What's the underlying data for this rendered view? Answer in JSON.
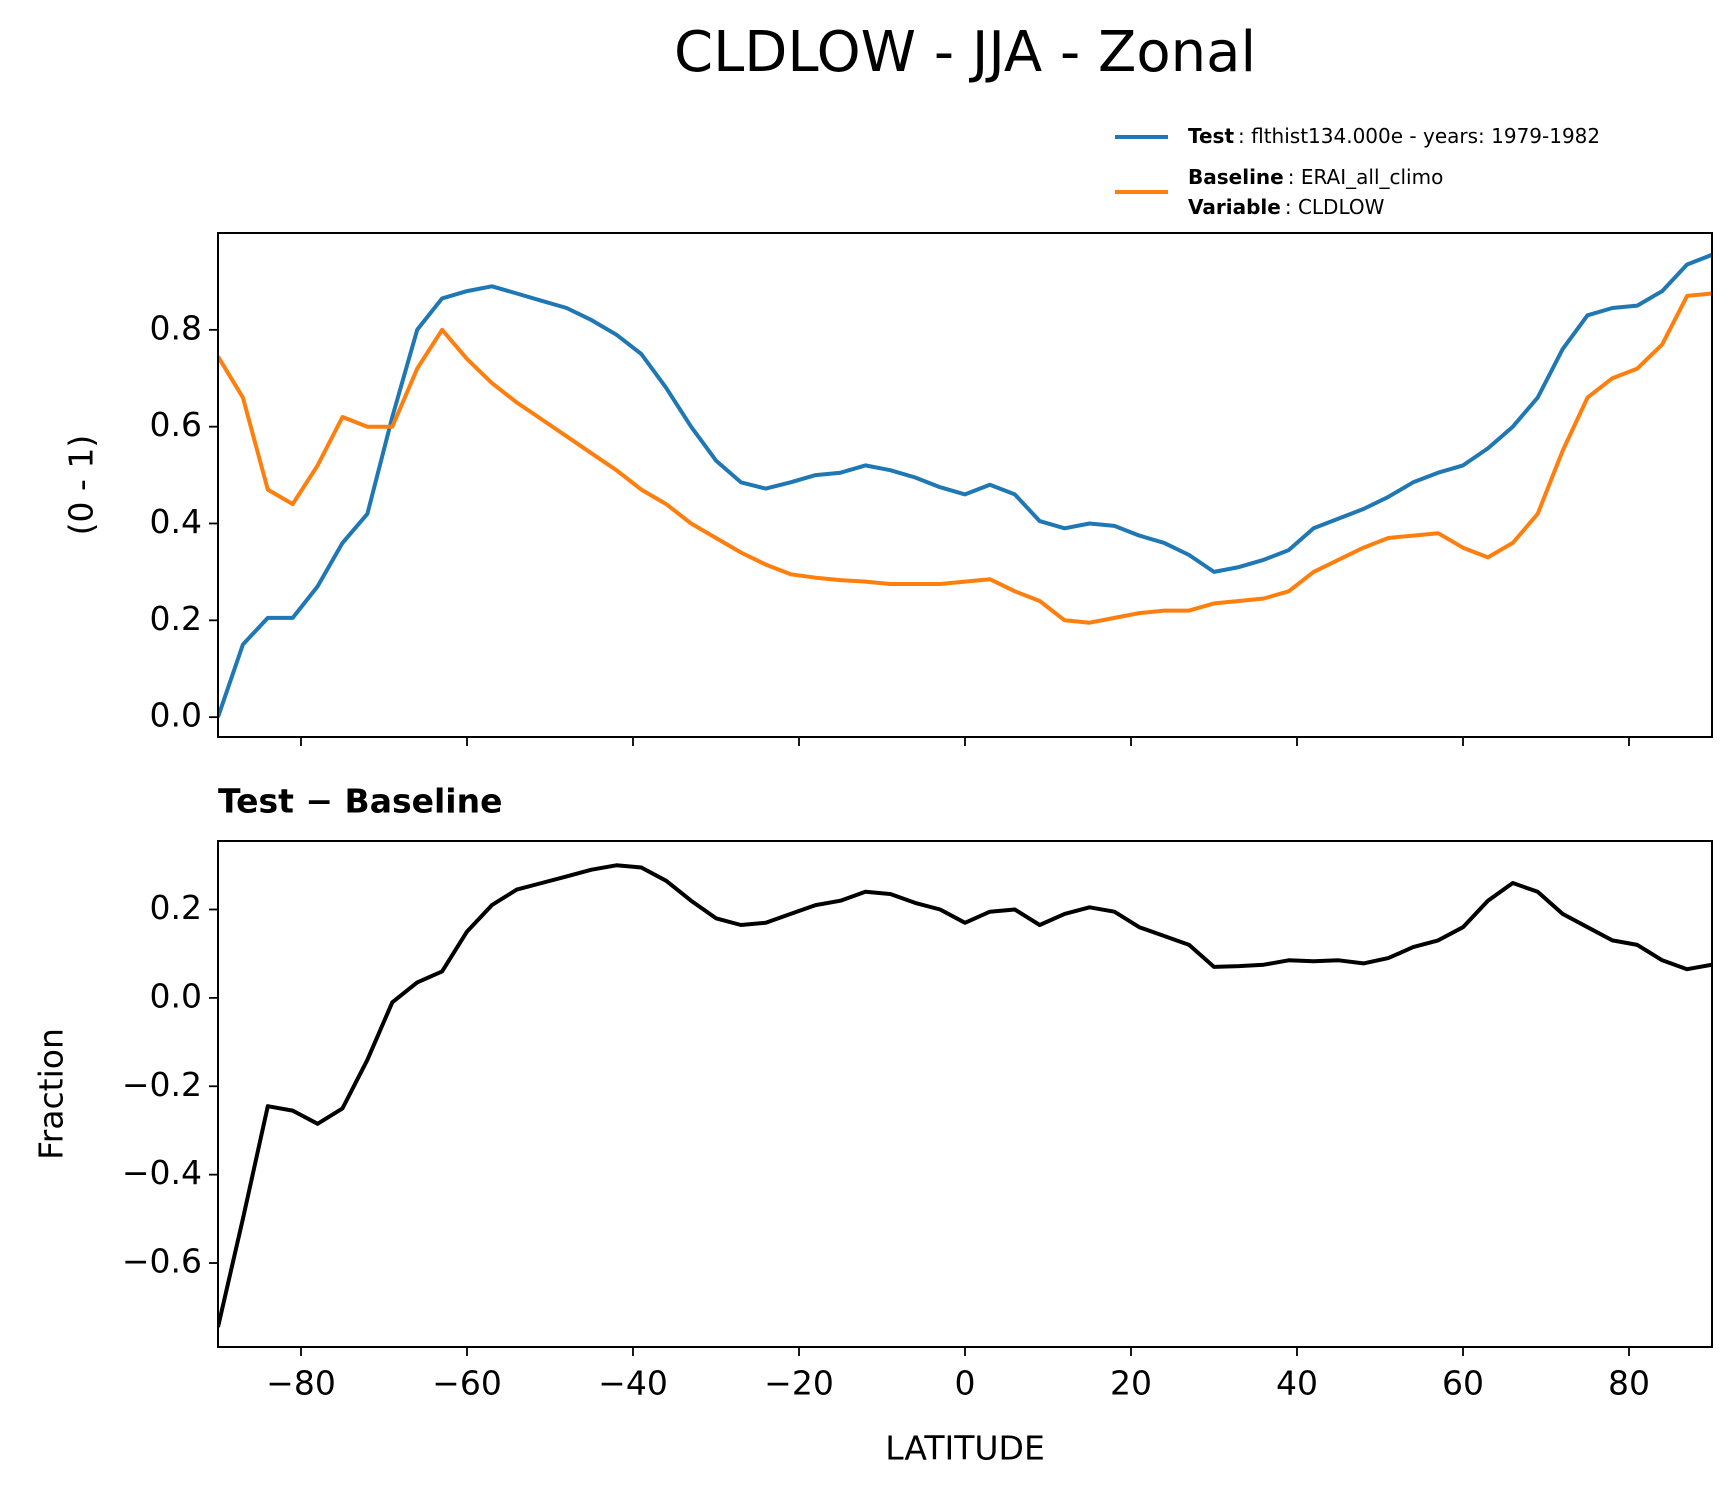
{
  "chart_data": [
    {
      "type": "line",
      "title": "CLDLOW - JJA - Zonal",
      "ylabel": "(0 - 1)",
      "x": [
        -90,
        -87,
        -84,
        -81,
        -78,
        -75,
        -72,
        -69,
        -66,
        -63,
        -60,
        -57,
        -54,
        -51,
        -48,
        -45,
        -42,
        -39,
        -36,
        -33,
        -30,
        -27,
        -24,
        -21,
        -18,
        -15,
        -12,
        -9,
        -6,
        -3,
        0,
        3,
        6,
        9,
        12,
        15,
        18,
        21,
        24,
        27,
        30,
        33,
        36,
        39,
        42,
        45,
        48,
        51,
        54,
        57,
        60,
        63,
        66,
        69,
        72,
        75,
        78,
        81,
        84,
        87,
        90
      ],
      "series": [
        {
          "name": "Test",
          "description": ": flthist134.000e - years: 1979-1982",
          "color": "#1f77b4",
          "values": [
            0.0,
            0.15,
            0.205,
            0.205,
            0.27,
            0.36,
            0.42,
            0.62,
            0.8,
            0.865,
            0.88,
            0.89,
            0.875,
            0.86,
            0.845,
            0.82,
            0.79,
            0.75,
            0.68,
            0.6,
            0.53,
            0.485,
            0.472,
            0.485,
            0.5,
            0.505,
            0.52,
            0.51,
            0.495,
            0.475,
            0.46,
            0.48,
            0.46,
            0.405,
            0.39,
            0.4,
            0.395,
            0.375,
            0.36,
            0.335,
            0.3,
            0.31,
            0.325,
            0.345,
            0.39,
            0.41,
            0.43,
            0.455,
            0.485,
            0.505,
            0.52,
            0.555,
            0.6,
            0.66,
            0.76,
            0.83,
            0.845,
            0.85,
            0.88,
            0.935,
            0.955
          ]
        },
        {
          "name": "Baseline",
          "description": ": ERAI_all_climo",
          "variable_name": "Variable",
          "variable": ": CLDLOW",
          "color": "#ff7f0e",
          "values": [
            0.745,
            0.66,
            0.47,
            0.44,
            0.52,
            0.62,
            0.6,
            0.6,
            0.72,
            0.8,
            0.74,
            0.69,
            0.65,
            0.615,
            0.58,
            0.545,
            0.51,
            0.47,
            0.44,
            0.4,
            0.37,
            0.34,
            0.315,
            0.295,
            0.288,
            0.283,
            0.28,
            0.275,
            0.275,
            0.275,
            0.28,
            0.285,
            0.26,
            0.24,
            0.2,
            0.195,
            0.205,
            0.215,
            0.22,
            0.22,
            0.235,
            0.24,
            0.245,
            0.26,
            0.3,
            0.325,
            0.35,
            0.37,
            0.375,
            0.38,
            0.35,
            0.33,
            0.36,
            0.42,
            0.55,
            0.66,
            0.7,
            0.72,
            0.77,
            0.87,
            0.875
          ]
        }
      ],
      "xlim": [
        -90,
        90
      ],
      "xticks": [
        {
          "value": -80,
          "label": "−80"
        },
        {
          "value": -60,
          "label": "−60"
        },
        {
          "value": -40,
          "label": "−40"
        },
        {
          "value": -20,
          "label": "−20"
        },
        0,
        20,
        40,
        60,
        80
      ],
      "ylim": [
        -0.041,
        1.0
      ],
      "yticks": [
        {
          "value": 0,
          "label": "0.0"
        },
        0.2,
        0.4,
        0.6,
        0.8
      ],
      "legend": "upper right"
    },
    {
      "type": "line",
      "title": "Test − Baseline",
      "ylabel": "Fraction",
      "xlabel": "LATITUDE",
      "x": [
        -90,
        -87,
        -84,
        -81,
        -78,
        -75,
        -72,
        -69,
        -66,
        -63,
        -60,
        -57,
        -54,
        -51,
        -48,
        -45,
        -42,
        -39,
        -36,
        -33,
        -30,
        -27,
        -24,
        -21,
        -18,
        -15,
        -12,
        -9,
        -6,
        -3,
        0,
        3,
        6,
        9,
        12,
        15,
        18,
        21,
        24,
        27,
        30,
        33,
        36,
        39,
        42,
        45,
        48,
        51,
        54,
        57,
        60,
        63,
        66,
        69,
        72,
        75,
        78,
        81,
        84,
        87,
        90
      ],
      "series": [
        {
          "color": "#000000",
          "values": [
            -0.745,
            -0.5,
            -0.245,
            -0.255,
            -0.285,
            -0.25,
            -0.14,
            -0.01,
            0.035,
            0.06,
            0.15,
            0.21,
            0.245,
            0.26,
            0.275,
            0.29,
            0.3,
            0.295,
            0.265,
            0.22,
            0.18,
            0.165,
            0.17,
            0.19,
            0.21,
            0.22,
            0.24,
            0.235,
            0.215,
            0.2,
            0.17,
            0.195,
            0.2,
            0.165,
            0.19,
            0.205,
            0.195,
            0.16,
            0.14,
            0.12,
            0.07,
            0.072,
            0.075,
            0.085,
            0.083,
            0.085,
            0.078,
            0.09,
            0.115,
            0.13,
            0.16,
            0.22,
            0.26,
            0.24,
            0.19,
            0.16,
            0.13,
            0.12,
            0.085,
            0.065,
            0.075
          ]
        }
      ],
      "xlim": [
        -90,
        90
      ],
      "xticks": [
        {
          "value": -80,
          "label": "−80"
        },
        {
          "value": -60,
          "label": "−60"
        },
        {
          "value": -40,
          "label": "−40"
        },
        {
          "value": -20,
          "label": "−20"
        },
        0,
        20,
        40,
        60,
        80
      ],
      "ylim": [
        -0.79,
        0.355
      ],
      "yticks": [
        {
          "value": -0.6,
          "label": "−0.6"
        },
        {
          "value": -0.4,
          "label": "−0.4"
        },
        {
          "value": -0.2,
          "label": "−0.2"
        },
        {
          "value": 0,
          "label": "0.0"
        },
        0.2
      ]
    }
  ]
}
